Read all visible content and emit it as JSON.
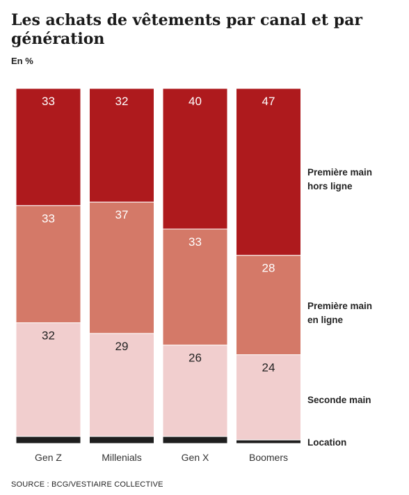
{
  "header": {
    "title": "Les achats de vêtements par canal et par génération",
    "unit": "En %"
  },
  "footer": {
    "source": "SOURCE : BCG/VESTIAIRE COLLECTIVE"
  },
  "chart_data": {
    "type": "bar",
    "stacked": true,
    "normalized": true,
    "categories": [
      "Gen Z",
      "Millenials",
      "Gen X",
      "Boomers"
    ],
    "series": [
      {
        "name": "Location",
        "values": [
          2,
          2,
          2,
          1
        ],
        "color": "#1e1e1e",
        "label_lines": [
          "Location"
        ]
      },
      {
        "name": "Seconde main",
        "values": [
          32,
          29,
          26,
          24
        ],
        "color": "#f1cece",
        "label_lines": [
          "Seconde main"
        ]
      },
      {
        "name": "Première main en ligne",
        "values": [
          33,
          37,
          33,
          28
        ],
        "color": "#d47968",
        "label_lines": [
          "Première main",
          "en ligne"
        ]
      },
      {
        "name": "Première main hors ligne",
        "values": [
          33,
          32,
          40,
          47
        ],
        "color": "#ae1a1d",
        "label_lines": [
          "Première main",
          "hors ligne"
        ]
      }
    ],
    "ylim": [
      0,
      100
    ],
    "legend_position": "right",
    "grid": false
  }
}
